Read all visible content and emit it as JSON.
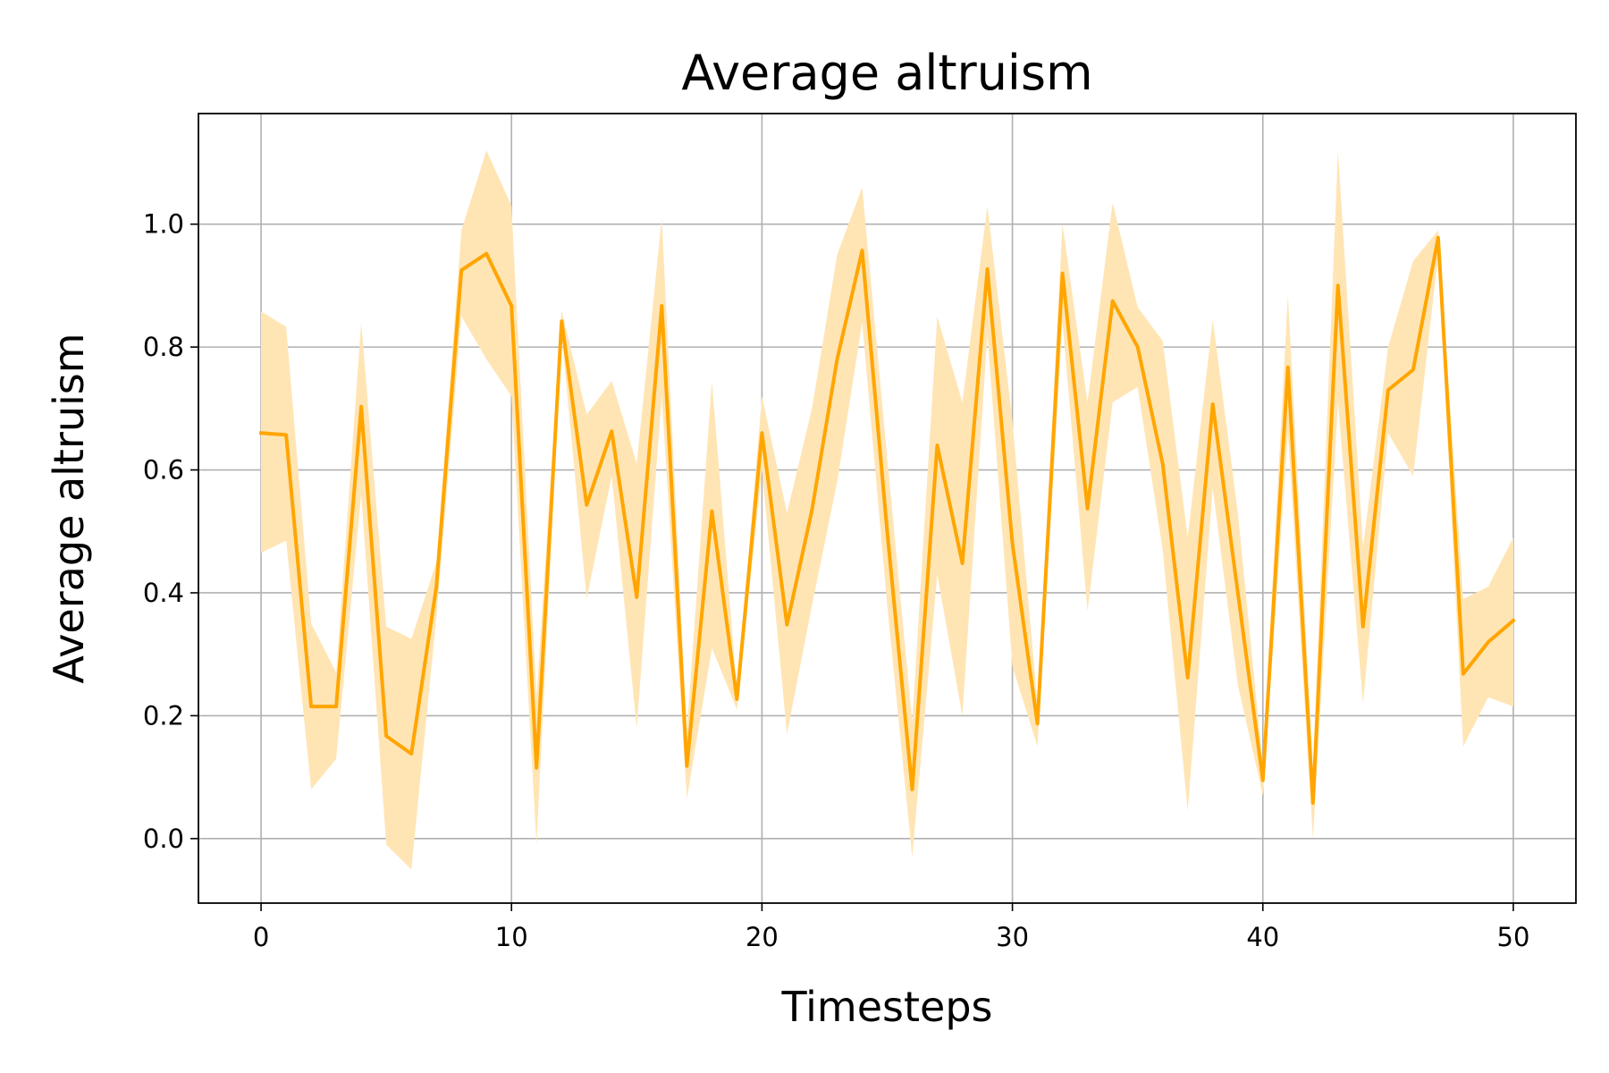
{
  "chart_data": {
    "type": "line",
    "title": "Average altruism",
    "xlabel": "Timesteps",
    "ylabel": "Average altruism",
    "xlim": [
      -2.5,
      52.5
    ],
    "ylim": [
      -0.105,
      1.18
    ],
    "x_ticks": [
      0,
      10,
      20,
      30,
      40,
      50
    ],
    "y_ticks": [
      0.0,
      0.2,
      0.4,
      0.6,
      0.8,
      1.0
    ],
    "x_tick_labels": [
      "0",
      "10",
      "20",
      "30",
      "40",
      "50"
    ],
    "y_tick_labels": [
      "0.0",
      "0.2",
      "0.4",
      "0.6",
      "0.8",
      "1.0"
    ],
    "grid": true,
    "legend": "none",
    "line_color": "#ffa500",
    "band_color": "#ffe5b4",
    "x": [
      0,
      1,
      2,
      3,
      4,
      5,
      6,
      7,
      8,
      9,
      10,
      11,
      12,
      13,
      14,
      15,
      16,
      17,
      18,
      19,
      20,
      21,
      22,
      23,
      24,
      25,
      26,
      27,
      28,
      29,
      30,
      31,
      32,
      33,
      34,
      35,
      36,
      37,
      38,
      39,
      40,
      41,
      42,
      43,
      44,
      45,
      46,
      47,
      48,
      49,
      50
    ],
    "series": [
      {
        "values": [
          0.66,
          0.657,
          0.215,
          0.215,
          0.703,
          0.167,
          0.138,
          0.41,
          0.925,
          0.952,
          0.867,
          0.115,
          0.842,
          0.543,
          0.663,
          0.393,
          0.867,
          0.118,
          0.533,
          0.227,
          0.66,
          0.348,
          0.535,
          0.78,
          0.957,
          0.5,
          0.08,
          0.64,
          0.448,
          0.927,
          0.48,
          0.187,
          0.92,
          0.537,
          0.875,
          0.8,
          0.61,
          0.262,
          0.707,
          0.4,
          0.095,
          0.767,
          0.058,
          0.9,
          0.345,
          0.73,
          0.763,
          0.978,
          0.268,
          0.32,
          0.355
        ],
        "lower": [
          0.465,
          0.485,
          0.08,
          0.13,
          0.56,
          -0.01,
          -0.05,
          0.36,
          0.85,
          0.78,
          0.72,
          -0.01,
          0.82,
          0.39,
          0.59,
          0.18,
          0.72,
          0.065,
          0.31,
          0.21,
          0.6,
          0.17,
          0.38,
          0.58,
          0.84,
          0.38,
          -0.03,
          0.43,
          0.2,
          0.82,
          0.28,
          0.15,
          0.84,
          0.37,
          0.71,
          0.735,
          0.47,
          0.045,
          0.57,
          0.25,
          0.07,
          0.66,
          0.0,
          0.71,
          0.22,
          0.66,
          0.59,
          0.95,
          0.15,
          0.23,
          0.215
        ],
        "upper": [
          0.858,
          0.833,
          0.35,
          0.27,
          0.84,
          0.345,
          0.325,
          0.45,
          0.99,
          1.12,
          1.03,
          0.23,
          0.86,
          0.69,
          0.745,
          0.61,
          1.01,
          0.175,
          0.745,
          0.24,
          0.72,
          0.53,
          0.7,
          0.95,
          1.06,
          0.62,
          0.19,
          0.85,
          0.71,
          1.03,
          0.68,
          0.22,
          1.0,
          0.71,
          1.035,
          0.865,
          0.81,
          0.49,
          0.845,
          0.53,
          0.12,
          0.885,
          0.115,
          1.12,
          0.475,
          0.8,
          0.94,
          0.99,
          0.39,
          0.41,
          0.49
        ]
      }
    ]
  }
}
